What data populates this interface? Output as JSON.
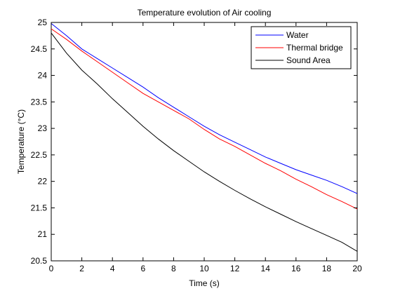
{
  "chart_data": {
    "type": "line",
    "title": "Temperature evolution of Air cooling",
    "xlabel": "Time (s)",
    "ylabel": "Temperature (°C)",
    "xlim": [
      0,
      20
    ],
    "ylim": [
      20.5,
      25
    ],
    "xticks": [
      0,
      2,
      4,
      6,
      8,
      10,
      12,
      14,
      16,
      18,
      20
    ],
    "yticks": [
      20.5,
      21,
      21.5,
      22,
      22.5,
      23,
      23.5,
      24,
      24.5,
      25
    ],
    "grid": false,
    "legend_position": "top-right",
    "x": [
      0,
      1,
      2,
      3,
      4,
      5,
      6,
      7,
      8,
      9,
      10,
      11,
      12,
      13,
      14,
      15,
      16,
      17,
      18,
      19,
      20
    ],
    "series": [
      {
        "name": "Water",
        "color": "#0000ff",
        "values": [
          24.98,
          24.75,
          24.5,
          24.32,
          24.14,
          23.96,
          23.78,
          23.58,
          23.4,
          23.22,
          23.04,
          22.88,
          22.74,
          22.6,
          22.46,
          22.34,
          22.22,
          22.12,
          22.02,
          21.9,
          21.77
        ]
      },
      {
        "name": "Thermal bridge",
        "color": "#ff0000",
        "values": [
          24.88,
          24.68,
          24.46,
          24.26,
          24.06,
          23.86,
          23.66,
          23.5,
          23.34,
          23.18,
          22.98,
          22.8,
          22.66,
          22.5,
          22.34,
          22.2,
          22.04,
          21.9,
          21.75,
          21.62,
          21.48
        ]
      },
      {
        "name": "Sound Area",
        "color": "#000000",
        "values": [
          24.8,
          24.42,
          24.1,
          23.84,
          23.56,
          23.3,
          23.04,
          22.8,
          22.58,
          22.38,
          22.18,
          22.0,
          21.83,
          21.67,
          21.52,
          21.38,
          21.24,
          21.11,
          20.98,
          20.85,
          20.68
        ]
      }
    ]
  }
}
